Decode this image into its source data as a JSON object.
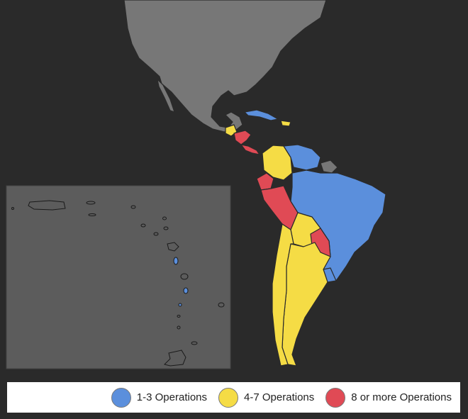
{
  "legend": {
    "items": [
      {
        "label": "1-3 Operations",
        "color": "#5b8fdc"
      },
      {
        "label": "4-7 Operations",
        "color": "#f5dc45"
      },
      {
        "label": "8 or more Operations",
        "color": "#e04a55"
      }
    ]
  },
  "colors": {
    "background": "#2a2a2a",
    "land_default": "#777777",
    "inset_panel": "#5c5c5c",
    "tier_1_3": "#5b8fdc",
    "tier_4_7": "#f5dc45",
    "tier_8_plus": "#e04a55",
    "legend_background": "#ffffff"
  }
}
